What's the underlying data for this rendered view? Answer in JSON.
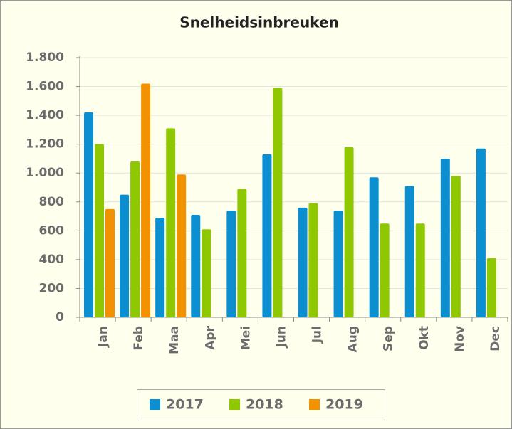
{
  "chart_data": {
    "type": "bar",
    "title": "Snelheidsinbreuken",
    "categories": [
      "Jan",
      "Feb",
      "Maa",
      "Apr",
      "Mei",
      "Jun",
      "Jul",
      "Aug",
      "Sep",
      "Okt",
      "Nov",
      "Dec"
    ],
    "series": [
      {
        "name": "2017",
        "color": "#0b8fd0",
        "values": [
          1420,
          850,
          690,
          710,
          740,
          1130,
          760,
          740,
          970,
          910,
          1100,
          1170
        ]
      },
      {
        "name": "2018",
        "color": "#8fc800",
        "values": [
          1200,
          1080,
          1310,
          610,
          890,
          1590,
          790,
          1180,
          650,
          650,
          980,
          410
        ]
      },
      {
        "name": "2019",
        "color": "#f39200",
        "values": [
          750,
          1620,
          990,
          null,
          null,
          null,
          null,
          null,
          null,
          null,
          null,
          null
        ]
      }
    ],
    "ylim": [
      0,
      1800
    ],
    "yticks": [
      0,
      200,
      400,
      600,
      800,
      {
        "value": 1000,
        "label": "1.000"
      },
      {
        "value": 1200,
        "label": "1.200"
      },
      {
        "value": 1400,
        "label": "1.400"
      },
      {
        "value": 1600,
        "label": "1.600"
      },
      {
        "value": 1800,
        "label": "1.800"
      }
    ],
    "grid": true
  }
}
